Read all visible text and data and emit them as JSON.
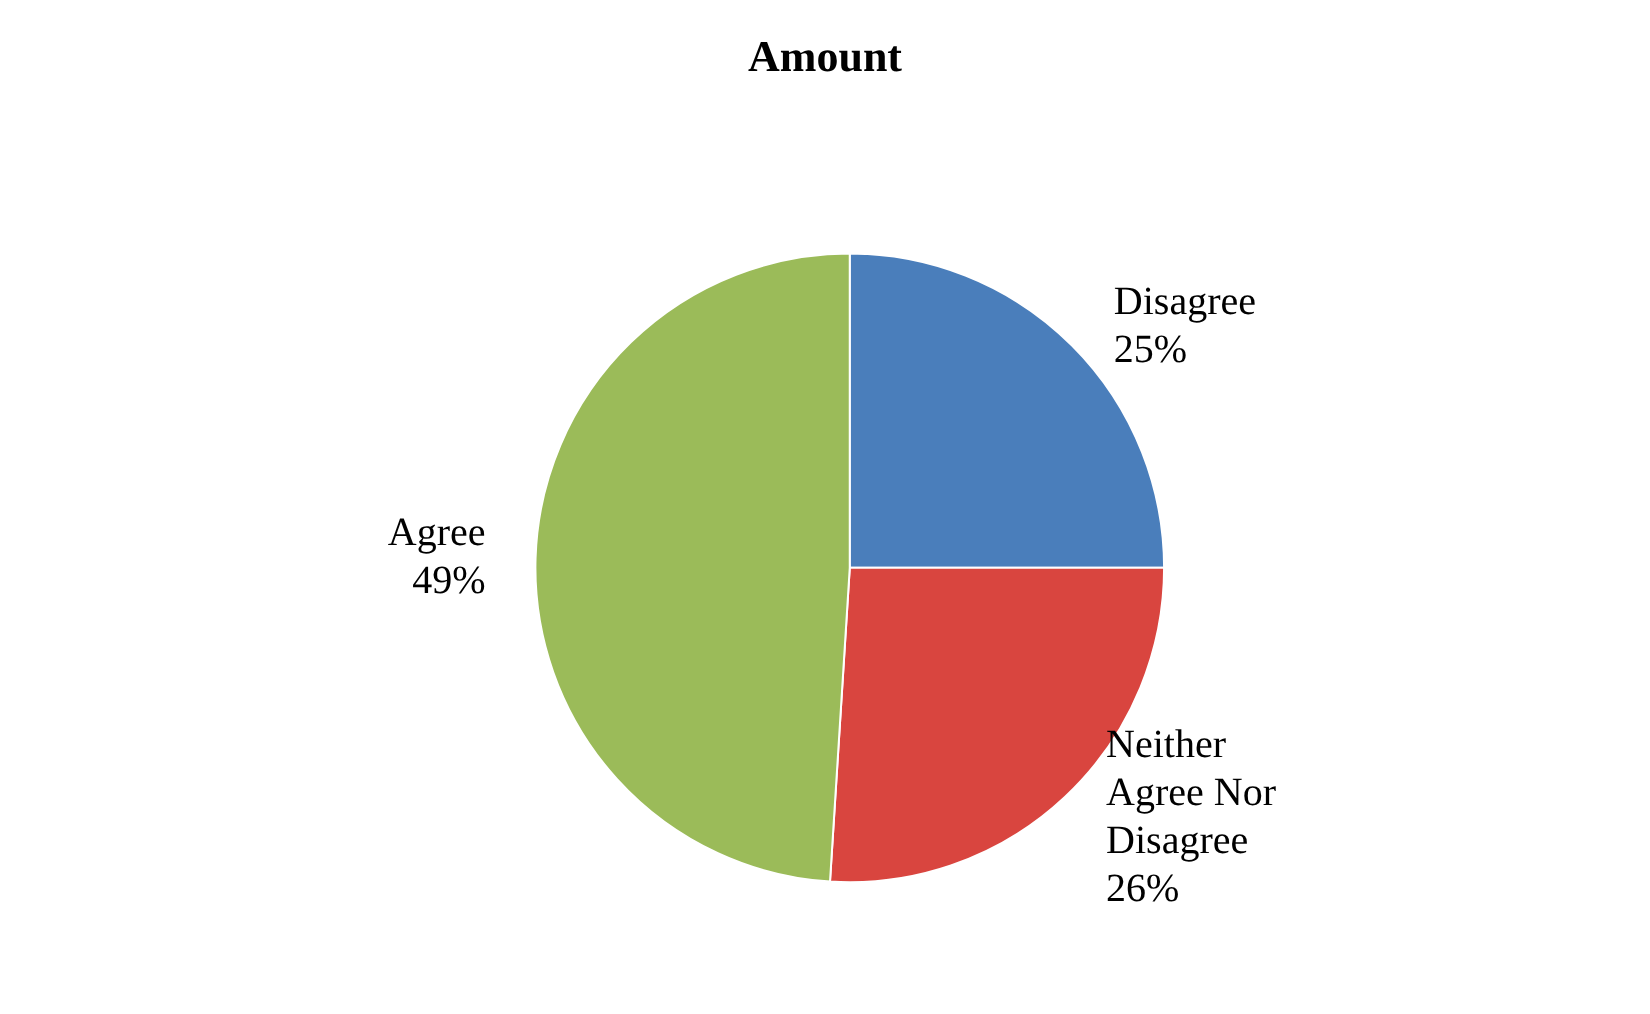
{
  "chart_data": {
    "type": "pie",
    "title": "Amount",
    "categories": [
      "Disagree",
      "Neither Agree Nor Disagree",
      "Agree"
    ],
    "values": [
      25,
      26,
      49
    ],
    "value_labels": [
      "25%",
      "26%",
      "49%"
    ],
    "colors": [
      "#4a7ebb",
      "#d9453f",
      "#9bbb59"
    ],
    "legend": false
  }
}
